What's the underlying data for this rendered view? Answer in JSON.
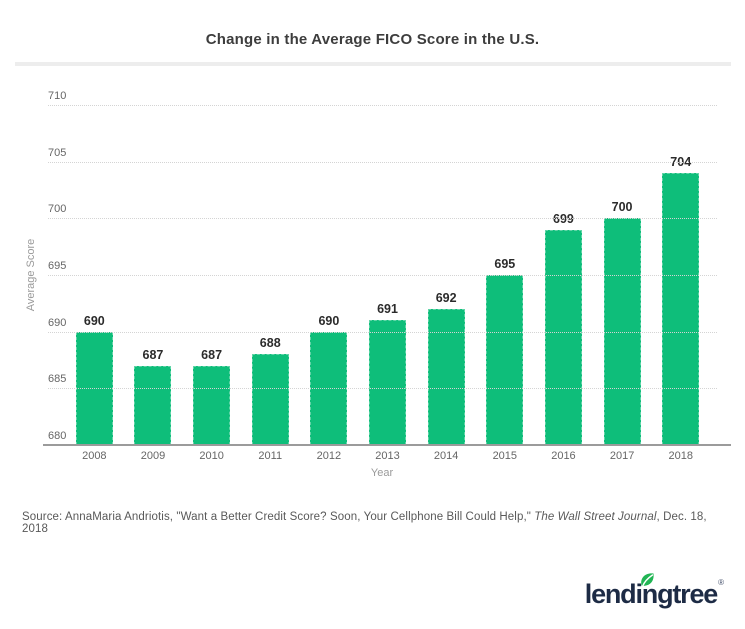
{
  "chart_data": {
    "type": "bar",
    "title": "Change in the Average FICO Score in the U.S.",
    "categories": [
      "2008",
      "2009",
      "2010",
      "2011",
      "2012",
      "2013",
      "2014",
      "2015",
      "2016",
      "2017",
      "2018"
    ],
    "values": [
      690,
      687,
      687,
      688,
      690,
      691,
      692,
      695,
      699,
      700,
      704
    ],
    "xlabel": "Year",
    "ylabel": "Average Score",
    "ylim": [
      680,
      710
    ],
    "ytick_step": 5,
    "yticks": [
      680,
      685,
      690,
      695,
      700,
      705,
      710
    ],
    "grid": true,
    "legend": "none",
    "bar_color": "#0ebe7a",
    "value_label_color": "#2b2b2b",
    "axis_color": "#9b9b9b"
  },
  "source": {
    "prefix": "Source: AnnaMaria Andriotis, \"Want a Better Credit Score? Soon, Your Cellphone Bill Could Help,\" ",
    "italic": "The Wall Street Journal",
    "suffix": ", Dec. 18, 2018"
  },
  "logo": {
    "text": "lendingtree",
    "registered": "®",
    "leaf_color": "#21b554",
    "text_color": "#1d2b45"
  }
}
